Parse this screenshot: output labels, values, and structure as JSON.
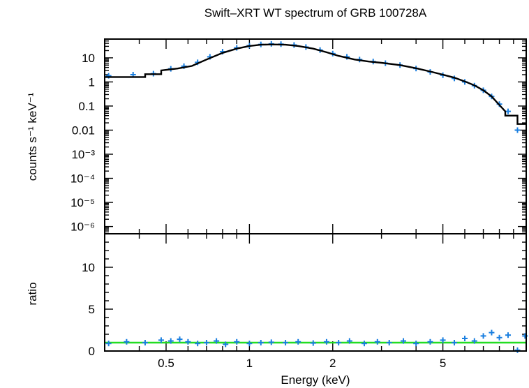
{
  "chart_data": [
    {
      "type": "scatter",
      "panel": "spectrum",
      "title": "Swift–XRT WT spectrum of GRB 100728A",
      "xlabel": "",
      "ylabel": "counts s⁻¹ keV⁻¹",
      "x_scale": "log",
      "y_scale": "log",
      "xlim": [
        0.3,
        10
      ],
      "ylim": [
        5e-07,
        60
      ],
      "y_ticks": [
        {
          "v": 10,
          "label": "10"
        },
        {
          "v": 1,
          "label": "1"
        },
        {
          "v": 0.1,
          "label": "0.1"
        },
        {
          "v": 0.01,
          "label": "0.01"
        },
        {
          "v": 0.001,
          "label": "10⁻³"
        },
        {
          "v": 0.0001,
          "label": "10⁻⁴"
        },
        {
          "v": 1e-05,
          "label": "10⁻⁵"
        },
        {
          "v": 1e-06,
          "label": "10⁻⁶"
        }
      ],
      "series": [
        {
          "role": "data",
          "color": "#1a7fe0",
          "points": [
            [
              0.31,
              1.8
            ],
            [
              0.38,
              2.0
            ],
            [
              0.45,
              2.2
            ],
            [
              0.52,
              3.5
            ],
            [
              0.58,
              4.5
            ],
            [
              0.65,
              6.5
            ],
            [
              0.72,
              11
            ],
            [
              0.8,
              18
            ],
            [
              0.9,
              26
            ],
            [
              1.0,
              32
            ],
            [
              1.1,
              36
            ],
            [
              1.2,
              38
            ],
            [
              1.3,
              37
            ],
            [
              1.45,
              34
            ],
            [
              1.6,
              28
            ],
            [
              1.8,
              21
            ],
            [
              2.0,
              15
            ],
            [
              2.25,
              11
            ],
            [
              2.5,
              8.5
            ],
            [
              2.8,
              7.0
            ],
            [
              3.1,
              6.0
            ],
            [
              3.5,
              5.0
            ],
            [
              4.0,
              3.6
            ],
            [
              4.5,
              2.6
            ],
            [
              5.0,
              1.9
            ],
            [
              5.5,
              1.4
            ],
            [
              6.0,
              1.0
            ],
            [
              6.5,
              0.7
            ],
            [
              7.0,
              0.45
            ],
            [
              7.5,
              0.25
            ],
            [
              8.0,
              0.12
            ],
            [
              8.6,
              0.06
            ],
            [
              9.3,
              0.01
            ]
          ]
        },
        {
          "role": "model",
          "color": "#000000",
          "points": [
            [
              0.3,
              1.6
            ],
            [
              0.42,
              1.6
            ],
            [
              0.42,
              2.1
            ],
            [
              0.48,
              2.1
            ],
            [
              0.48,
              3.0
            ],
            [
              0.55,
              3.6
            ],
            [
              0.62,
              4.6
            ],
            [
              0.7,
              8.5
            ],
            [
              0.8,
              16
            ],
            [
              0.9,
              24
            ],
            [
              1.0,
              31
            ],
            [
              1.1,
              35
            ],
            [
              1.2,
              36
            ],
            [
              1.35,
              35
            ],
            [
              1.5,
              31
            ],
            [
              1.7,
              24
            ],
            [
              1.9,
              17
            ],
            [
              2.1,
              12
            ],
            [
              2.4,
              8.5
            ],
            [
              2.7,
              7.0
            ],
            [
              3.0,
              6.2
            ],
            [
              3.5,
              5.0
            ],
            [
              4.0,
              3.7
            ],
            [
              4.5,
              2.7
            ],
            [
              5.0,
              2.0
            ],
            [
              5.5,
              1.5
            ],
            [
              6.0,
              1.05
            ],
            [
              6.5,
              0.72
            ],
            [
              7.0,
              0.45
            ],
            [
              7.5,
              0.25
            ],
            [
              8.0,
              0.11
            ],
            [
              8.4,
              0.06
            ],
            [
              8.4,
              0.04
            ],
            [
              9.3,
              0.04
            ],
            [
              9.3,
              0.018
            ],
            [
              10.0,
              0.018
            ]
          ]
        }
      ]
    },
    {
      "type": "scatter",
      "panel": "ratio",
      "xlabel": "Energy (keV)",
      "ylabel": "ratio",
      "x_scale": "log",
      "y_scale": "linear",
      "xlim": [
        0.3,
        10
      ],
      "ylim": [
        0,
        14
      ],
      "x_ticks": [
        {
          "v": 0.5,
          "label": "0.5"
        },
        {
          "v": 1,
          "label": "1"
        },
        {
          "v": 2,
          "label": "2"
        },
        {
          "v": 5,
          "label": "5"
        }
      ],
      "y_ticks": [
        {
          "v": 0,
          "label": "0"
        },
        {
          "v": 5,
          "label": "5"
        },
        {
          "v": 10,
          "label": "10"
        }
      ],
      "reference_line": {
        "y": 1,
        "color": "#22dd22"
      },
      "series": [
        {
          "role": "ratio",
          "color": "#1a7fe0",
          "points": [
            [
              0.31,
              0.9
            ],
            [
              0.36,
              1.1
            ],
            [
              0.42,
              1.0
            ],
            [
              0.48,
              1.3
            ],
            [
              0.52,
              1.2
            ],
            [
              0.56,
              1.4
            ],
            [
              0.6,
              1.1
            ],
            [
              0.65,
              0.9
            ],
            [
              0.7,
              1.0
            ],
            [
              0.76,
              1.2
            ],
            [
              0.82,
              0.8
            ],
            [
              0.9,
              1.1
            ],
            [
              1.0,
              0.9
            ],
            [
              1.1,
              1.0
            ],
            [
              1.2,
              1.05
            ],
            [
              1.35,
              1.0
            ],
            [
              1.5,
              1.1
            ],
            [
              1.7,
              0.95
            ],
            [
              1.9,
              1.1
            ],
            [
              2.1,
              1.0
            ],
            [
              2.3,
              1.2
            ],
            [
              2.6,
              0.9
            ],
            [
              2.9,
              1.1
            ],
            [
              3.2,
              1.0
            ],
            [
              3.6,
              1.2
            ],
            [
              4.0,
              0.9
            ],
            [
              4.5,
              1.1
            ],
            [
              5.0,
              1.3
            ],
            [
              5.5,
              1.0
            ],
            [
              6.0,
              1.5
            ],
            [
              6.5,
              1.2
            ],
            [
              7.0,
              1.8
            ],
            [
              7.5,
              2.2
            ],
            [
              8.0,
              1.6
            ],
            [
              8.6,
              1.9
            ],
            [
              9.3,
              0.1
            ],
            [
              9.9,
              1.8
            ]
          ]
        }
      ]
    }
  ]
}
